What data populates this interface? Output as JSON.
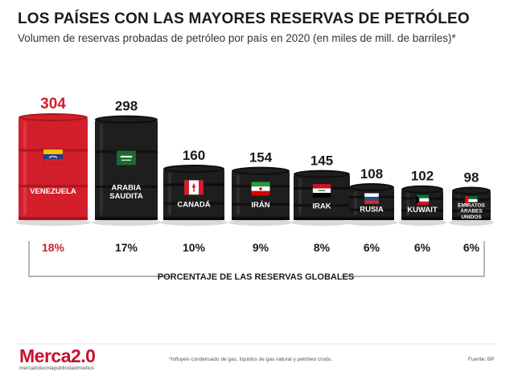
{
  "header": {
    "title": "LOS PAÍSES CON LAS MAYORES RESERVAS DE PETRÓLEO",
    "subtitle": "Volumen de reservas probadas de petróleo por país en 2020 (en miles de mill. de barriles)*"
  },
  "chart_data": {
    "type": "bar",
    "title": "LOS PAÍSES CON LAS MAYORES RESERVAS DE PETRÓLEO",
    "subtitle": "Volumen de reservas probadas de petróleo por país en 2020 (en miles de mill. de barriles)*",
    "categories": [
      [
        "VENEZUELA"
      ],
      [
        "ARABIA",
        "SAUDITA"
      ],
      [
        "CANADÁ"
      ],
      [
        "IRÁN"
      ],
      [
        "IRAK"
      ],
      [
        "RUSIA"
      ],
      [
        "KUWAIT"
      ],
      [
        "EMIRATOS",
        "ÁRABES",
        "UNIDOS"
      ]
    ],
    "values": [
      304,
      298,
      160,
      154,
      145,
      108,
      102,
      98
    ],
    "percent_labels": [
      "18%",
      "17%",
      "10%",
      "9%",
      "8%",
      "6%",
      "6%",
      "6%"
    ],
    "percent_caption": "PORCENTAJE DE LAS RESERVAS GLOBALES",
    "highlight_color": "#d21f2b",
    "bar_color": "#1e1e1e",
    "flags": [
      "venezuela-flag",
      "saudi-arabia-flag",
      "canada-flag",
      "iran-flag",
      "iraq-flag",
      "russia-flag",
      "kuwait-flag",
      "uae-flag"
    ]
  },
  "footer": {
    "brand": "Merca2.0",
    "brand_tagline": "mercadotecniapublicidadmedios",
    "footnote": "*Influyen condensado de gas, líquidos de gas natural y petróleo crudo.",
    "source": "Fuente: BP"
  }
}
